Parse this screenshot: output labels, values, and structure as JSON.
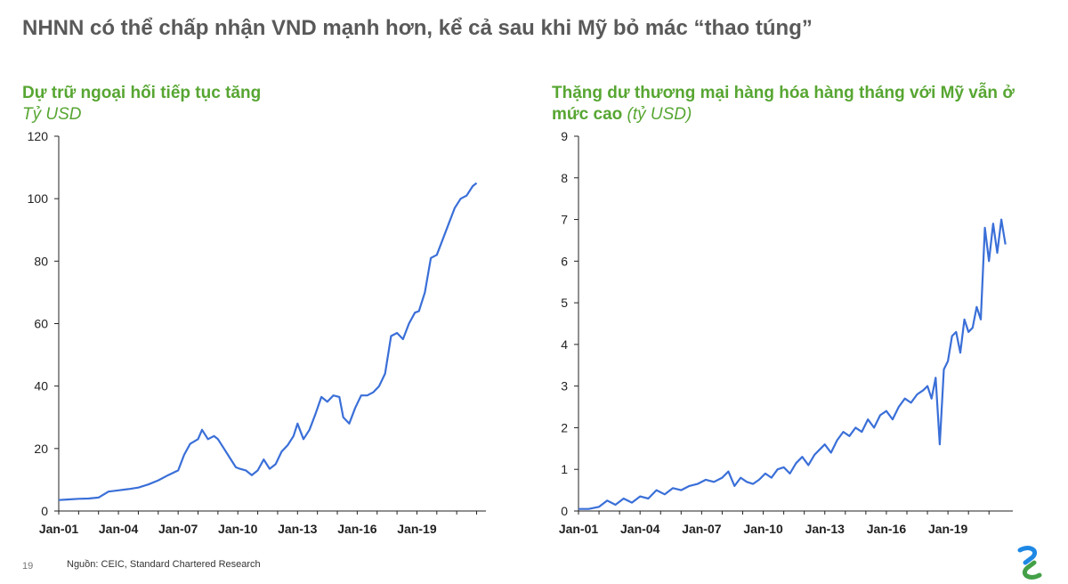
{
  "page": {
    "title": "NHNN có thể chấp nhận VND mạnh hơn, kể cả sau khi Mỹ bỏ mác “thao túng”",
    "page_number": "19",
    "source": "Nguồn: CEIC, Standard Chartered Research"
  },
  "colors": {
    "line": "#3a6fd8",
    "title_green": "#57a632"
  },
  "chart_data": [
    {
      "type": "line",
      "title": "Dự trữ ngoại hối tiếp tục tăng",
      "ylabel": "Tỷ USD",
      "xlabel": "",
      "xtick_labels": [
        "Jan-01",
        "Jan-04",
        "Jan-07",
        "Jan-10",
        "Jan-13",
        "Jan-16",
        "Jan-19"
      ],
      "xlim": [
        2001.0,
        2022.2
      ],
      "ylim": [
        0,
        120
      ],
      "yticks": [
        0,
        20,
        40,
        60,
        80,
        100,
        120
      ],
      "grid": false,
      "x": [
        2001.0,
        2001.5,
        2002.0,
        2002.5,
        2003.0,
        2003.5,
        2004.0,
        2004.5,
        2005.0,
        2005.5,
        2006.0,
        2006.5,
        2007.0,
        2007.3,
        2007.6,
        2008.0,
        2008.2,
        2008.5,
        2008.8,
        2009.0,
        2009.3,
        2009.6,
        2009.9,
        2010.1,
        2010.4,
        2010.7,
        2011.0,
        2011.3,
        2011.6,
        2011.9,
        2012.2,
        2012.5,
        2012.8,
        2013.0,
        2013.3,
        2013.6,
        2013.9,
        2014.2,
        2014.5,
        2014.8,
        2015.1,
        2015.3,
        2015.6,
        2015.9,
        2016.2,
        2016.5,
        2016.8,
        2017.1,
        2017.4,
        2017.7,
        2018.0,
        2018.3,
        2018.6,
        2018.9,
        2019.1,
        2019.4,
        2019.7,
        2020.0,
        2020.3,
        2020.6,
        2020.9,
        2021.2,
        2021.5,
        2021.8,
        2022.0
      ],
      "y": [
        3.5,
        3.7,
        3.9,
        4.0,
        4.3,
        6.2,
        6.6,
        7.0,
        7.5,
        8.5,
        9.8,
        11.5,
        13.0,
        18.0,
        21.5,
        23.0,
        26.0,
        23.0,
        24.0,
        23.0,
        20.0,
        17.0,
        14.0,
        13.5,
        13.0,
        11.5,
        13.0,
        16.5,
        13.5,
        15.0,
        19.0,
        21.0,
        24.0,
        28.0,
        23.0,
        26.0,
        31.0,
        36.5,
        35.0,
        37.0,
        36.5,
        30.0,
        28.0,
        33.0,
        37.0,
        37.0,
        38.0,
        40.0,
        44.0,
        56.0,
        57.0,
        55.0,
        60.0,
        63.5,
        64.0,
        70.0,
        81.0,
        82.0,
        87.0,
        92.0,
        97.0,
        100.0,
        101.0,
        104.0,
        105.0
      ]
    },
    {
      "type": "line",
      "title": "Thặng dư thương mại hàng hóa hàng tháng với Mỹ vẫn ở mức cao",
      "ylabel": "(tỷ USD)",
      "xlabel": "",
      "xtick_labels": [
        "Jan-01",
        "Jan-04",
        "Jan-07",
        "Jan-10",
        "Jan-13",
        "Jan-16",
        "Jan-19"
      ],
      "xlim": [
        2001.0,
        2021.9
      ],
      "ylim": [
        0,
        9
      ],
      "yticks": [
        0,
        1,
        2,
        3,
        4,
        5,
        6,
        7,
        8,
        9
      ],
      "grid": false,
      "x": [
        2001.0,
        2001.5,
        2002.0,
        2002.4,
        2002.8,
        2003.2,
        2003.6,
        2004.0,
        2004.4,
        2004.8,
        2005.2,
        2005.6,
        2006.0,
        2006.4,
        2006.8,
        2007.2,
        2007.6,
        2008.0,
        2008.3,
        2008.6,
        2008.9,
        2009.2,
        2009.5,
        2009.8,
        2010.1,
        2010.4,
        2010.7,
        2011.0,
        2011.3,
        2011.6,
        2011.9,
        2012.2,
        2012.5,
        2012.8,
        2013.0,
        2013.3,
        2013.6,
        2013.9,
        2014.2,
        2014.5,
        2014.8,
        2015.1,
        2015.4,
        2015.7,
        2016.0,
        2016.3,
        2016.6,
        2016.9,
        2017.2,
        2017.5,
        2017.8,
        2018.0,
        2018.2,
        2018.4,
        2018.6,
        2018.8,
        2019.0,
        2019.2,
        2019.4,
        2019.6,
        2019.8,
        2020.0,
        2020.2,
        2020.4,
        2020.6,
        2020.8,
        2021.0,
        2021.2,
        2021.4,
        2021.6,
        2021.8
      ],
      "y": [
        0.05,
        0.05,
        0.1,
        0.25,
        0.15,
        0.3,
        0.2,
        0.35,
        0.3,
        0.5,
        0.4,
        0.55,
        0.5,
        0.6,
        0.65,
        0.75,
        0.7,
        0.8,
        0.95,
        0.6,
        0.8,
        0.7,
        0.65,
        0.75,
        0.9,
        0.8,
        1.0,
        1.05,
        0.9,
        1.15,
        1.3,
        1.1,
        1.35,
        1.5,
        1.6,
        1.4,
        1.7,
        1.9,
        1.8,
        2.0,
        1.9,
        2.2,
        2.0,
        2.3,
        2.4,
        2.2,
        2.5,
        2.7,
        2.6,
        2.8,
        2.9,
        3.0,
        2.7,
        3.2,
        1.6,
        3.4,
        3.6,
        4.2,
        4.3,
        3.8,
        4.6,
        4.3,
        4.4,
        4.9,
        4.6,
        6.8,
        6.0,
        6.9,
        6.2,
        7.0,
        6.4
      ]
    }
  ]
}
